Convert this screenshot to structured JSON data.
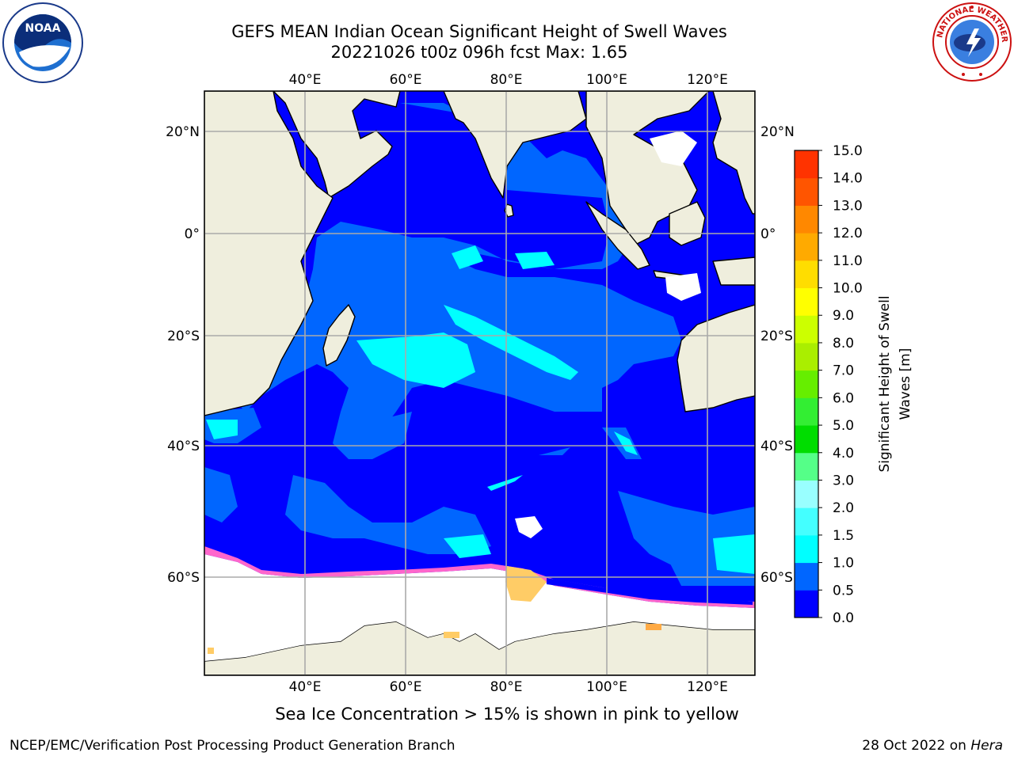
{
  "header": {
    "title_line1": "GEFS MEAN Indian Ocean Significant Height of Swell Waves",
    "title_line2": "20221026 t00z 096h fcst   Max: 1.65"
  },
  "logos": {
    "left": "noaa-logo",
    "right": "national-weather-service-logo",
    "noaa_text": "NOAA",
    "nws_ring_text": "NATIONAL WEATHER SERVICE"
  },
  "map": {
    "lon_labels": [
      "40°E",
      "60°E",
      "80°E",
      "100°E",
      "120°E"
    ],
    "lat_labels": [
      "20°N",
      "0°",
      "20°S",
      "40°S",
      "60°S"
    ],
    "lon_range": [
      20,
      130
    ],
    "lat_range": [
      -79,
      28
    ],
    "colors": {
      "land": "#efeedd",
      "sea_ice": "#ffffff",
      "ice_edge": [
        "#ff66cc",
        "#ffaa44",
        "#ffcc66"
      ],
      "gridline": "#aaaaaa"
    }
  },
  "colorbar": {
    "label": "Significant Height of Swell Waves [m]",
    "ticks": [
      "0.0",
      "0.5",
      "1.0",
      "1.5",
      "2.0",
      "3.0",
      "4.0",
      "5.0",
      "6.0",
      "7.0",
      "8.0",
      "9.0",
      "10.0",
      "11.0",
      "12.0",
      "13.0",
      "14.0",
      "15.0"
    ],
    "colors": [
      "#0000ff",
      "#0066ff",
      "#00ffff",
      "#44ffff",
      "#99ffff",
      "#55ff88",
      "#00dd00",
      "#33ee33",
      "#66ee00",
      "#aaee00",
      "#ccff00",
      "#ffff00",
      "#ffdd00",
      "#ffaa00",
      "#ff8800",
      "#ff5500",
      "#ff3300",
      "#ff0000"
    ]
  },
  "caption": "Sea Ice Concentration > 15% is shown in pink to yellow",
  "footer": {
    "left": "NCEP/EMC/Verification Post Processing Product Generation Branch",
    "right_date": "28 Oct 2022 on ",
    "right_machine": "Hera"
  }
}
